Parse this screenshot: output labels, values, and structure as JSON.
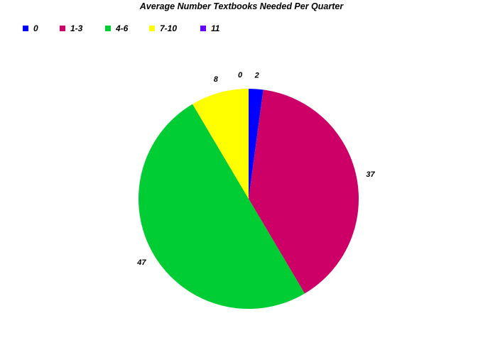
{
  "chart_data": {
    "type": "pie",
    "title": "Average Number Textbooks Needed Per Quarter",
    "legend_position": "top-left",
    "slices": [
      {
        "label": "0",
        "value": 2,
        "data_label": "2",
        "color": "#0000ff"
      },
      {
        "label": "1-3",
        "value": 37,
        "data_label": "37",
        "color": "#cc0066"
      },
      {
        "label": "4-6",
        "value": 47,
        "data_label": "47",
        "color": "#00cc33"
      },
      {
        "label": "7-10",
        "value": 8,
        "data_label": "8",
        "color": "#ffff00"
      },
      {
        "label": "11",
        "value": 0,
        "data_label": "0",
        "color": "#6600ff"
      }
    ]
  }
}
